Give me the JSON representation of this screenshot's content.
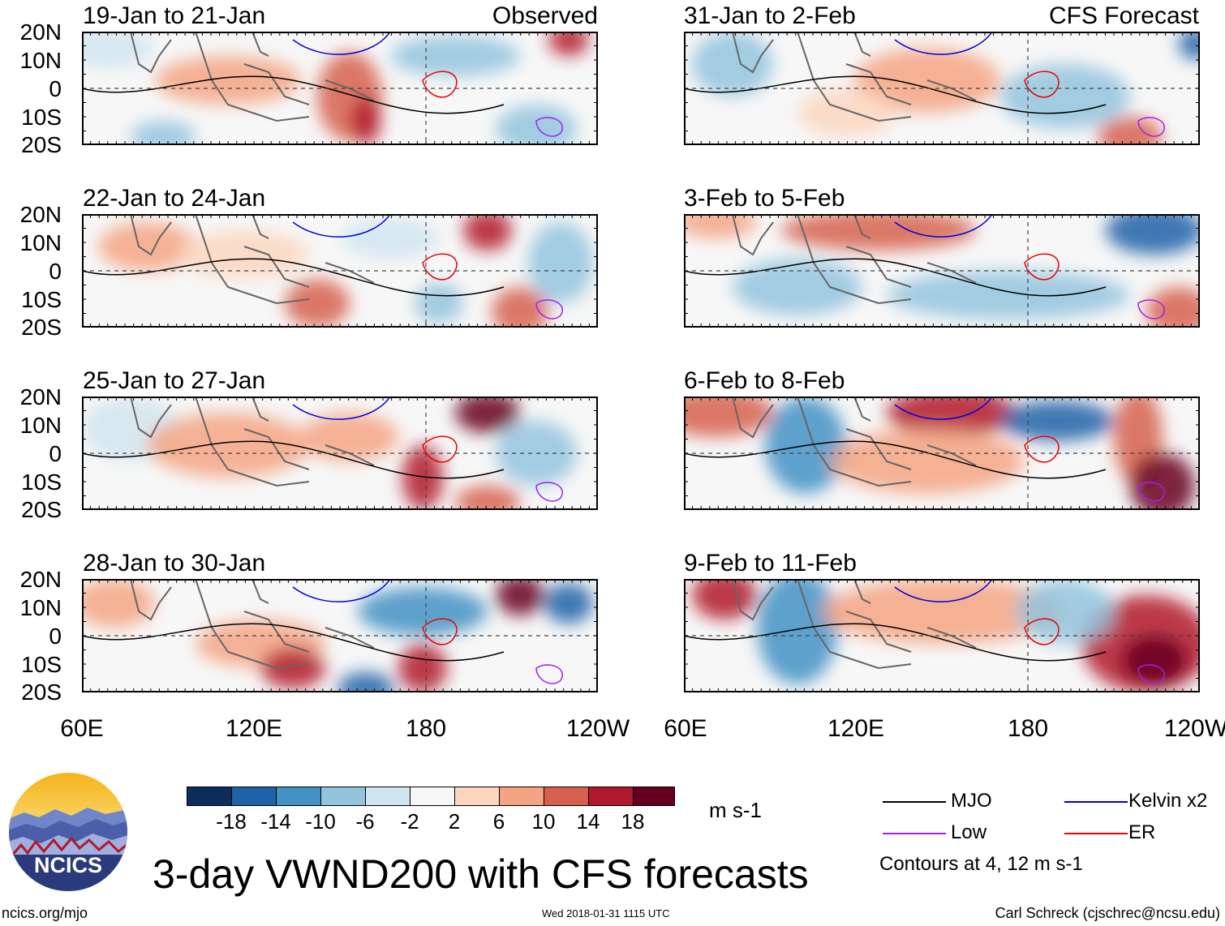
{
  "header": {
    "left_label": "Observed",
    "right_label": "CFS Forecast"
  },
  "lat_labels": [
    "20N",
    "10N",
    "0",
    "10S",
    "20S"
  ],
  "lon_labels": [
    "60E",
    "120E",
    "180",
    "120W"
  ],
  "panels_left": [
    {
      "title": "19-Jan to 21-Jan"
    },
    {
      "title": "22-Jan to 24-Jan"
    },
    {
      "title": "25-Jan to 27-Jan"
    },
    {
      "title": "28-Jan to 30-Jan"
    }
  ],
  "panels_right": [
    {
      "title": "31-Jan to 2-Feb"
    },
    {
      "title": "3-Feb to 5-Feb"
    },
    {
      "title": "6-Feb to 8-Feb"
    },
    {
      "title": "9-Feb to 11-Feb"
    }
  ],
  "colorbar": {
    "labels": [
      "-18",
      "-14",
      "-10",
      "-6",
      "-2",
      "2",
      "6",
      "10",
      "14",
      "18"
    ],
    "colors": [
      "#0b2e5c",
      "#1f62a8",
      "#4392c4",
      "#93c4de",
      "#d1e5f0",
      "#f7f7f7",
      "#fcd7c0",
      "#f4a482",
      "#d6604d",
      "#b2182b",
      "#67001f"
    ],
    "units": "m s-1"
  },
  "legend": {
    "items": [
      {
        "label": "MJO",
        "color": "#000000"
      },
      {
        "label": "Kelvin x2",
        "color": "#0000dd"
      },
      {
        "label": "Low",
        "color": "#a020f0"
      },
      {
        "label": "ER",
        "color": "#ee0000"
      }
    ],
    "note": "Contours at 4, 12 m s-1"
  },
  "logo": {
    "text": "NCICS"
  },
  "main_title": "3-day VWND200 with CFS forecasts",
  "footer": {
    "url": "ncics.org/mjo",
    "timestamp": "Wed 2018-01-31 1115 UTC",
    "credit": "Carl Schreck (cjschrec@ncsu.edu)"
  }
}
